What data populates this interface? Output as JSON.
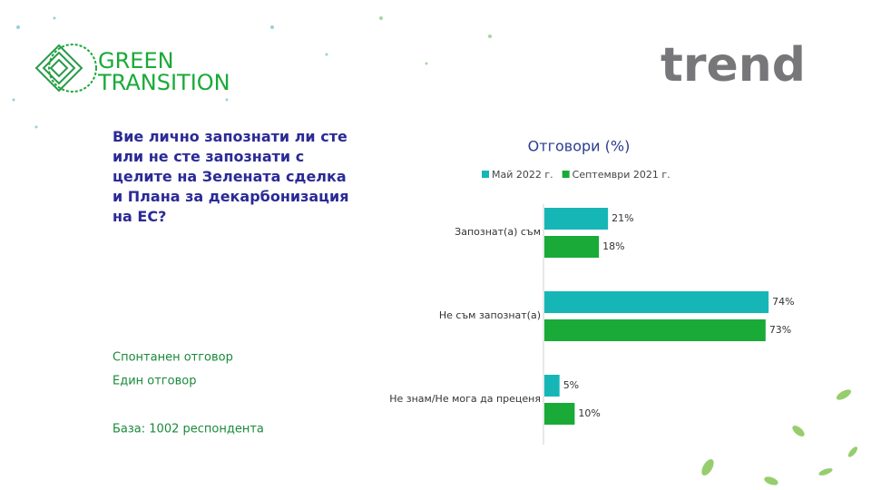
{
  "logo": {
    "line1": "GREEN",
    "line2": "TRANSITION",
    "brand": "trend"
  },
  "question": "Вие лично запознати ли сте или не сте запознати с целите на Зелената сделка и Плана за декарбонизация на ЕС?",
  "notes": [
    "Спонтанен отговор",
    "Един отговор",
    "База:  1002 респондента"
  ],
  "chart_data": {
    "type": "hbar",
    "title": "Отговори (%)",
    "categories": [
      "Запознат(а) съм",
      "Не съм запознат(а)",
      "Не знам/Не мога да преценя"
    ],
    "series": [
      {
        "name": "Май 2022 г.",
        "color": "#17b6b6",
        "values": [
          21,
          74,
          5
        ],
        "value_labels": [
          "21%",
          "74%",
          "5%"
        ]
      },
      {
        "name": "Септември 2021 г.",
        "color": "#1aaa38",
        "values": [
          18,
          73,
          10
        ],
        "value_labels": [
          "18%",
          "73%",
          "10%"
        ]
      }
    ]
  }
}
